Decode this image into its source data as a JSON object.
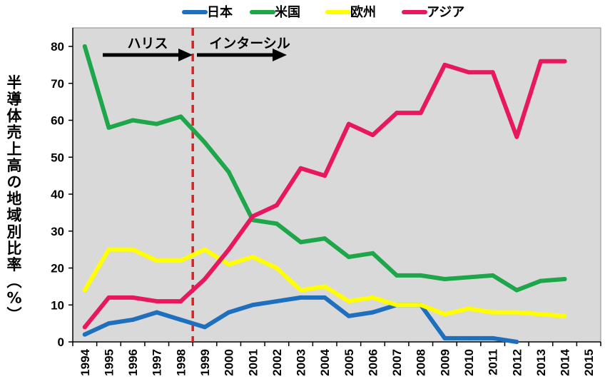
{
  "chart_data": {
    "type": "line",
    "title": "",
    "xlabel": "",
    "ylabel": "半導体売上高の地域別比率（%）",
    "ylim": [
      0,
      85
    ],
    "yticks": [
      0,
      10,
      20,
      30,
      40,
      50,
      60,
      70,
      80
    ],
    "grid": false,
    "legend_position": "top",
    "categories": [
      "1994",
      "1995",
      "1996",
      "1997",
      "1998",
      "1999",
      "2000",
      "2001",
      "2002",
      "2003",
      "2004",
      "2005",
      "2006",
      "2007",
      "2008",
      "2009",
      "2010",
      "2011",
      "2012",
      "2013",
      "2014",
      "2015"
    ],
    "series": [
      {
        "name": "日本",
        "color": "#1f6fbf",
        "values": [
          2,
          5,
          6,
          8,
          6,
          4,
          8,
          10,
          11,
          12,
          12,
          7,
          8,
          10,
          10,
          1,
          1,
          1,
          0,
          null,
          null,
          null
        ]
      },
      {
        "name": "米国",
        "color": "#1ea64a",
        "values": [
          80,
          58,
          60,
          59,
          61,
          54,
          46,
          33,
          32,
          27,
          28,
          23,
          24,
          18,
          18,
          17,
          17.5,
          18,
          14,
          16.5,
          17,
          null
        ]
      },
      {
        "name": "欧州",
        "color": "#ffff00",
        "values": [
          14,
          25,
          25,
          22,
          22,
          25,
          21,
          23,
          20,
          14,
          15,
          11,
          12,
          10,
          10,
          7.5,
          9,
          8,
          8,
          7.5,
          7,
          null
        ]
      },
      {
        "name": "アジア",
        "color": "#e8185f",
        "values": [
          4,
          12,
          12,
          11,
          11,
          17,
          25,
          34,
          37,
          47,
          45,
          59,
          56,
          62,
          62,
          75,
          73,
          73,
          55.5,
          76,
          76,
          null
        ]
      }
    ],
    "annotations": [
      {
        "type": "vline",
        "x": "1998",
        "offset": 0.5,
        "color": "#e02020",
        "style": "dashed"
      },
      {
        "type": "arrow",
        "label": "ハリス",
        "from": "1994",
        "to": "1998",
        "direction": "right"
      },
      {
        "type": "arrow",
        "label": "インターシル",
        "from": "1998",
        "to": "2002",
        "direction": "right"
      }
    ]
  }
}
